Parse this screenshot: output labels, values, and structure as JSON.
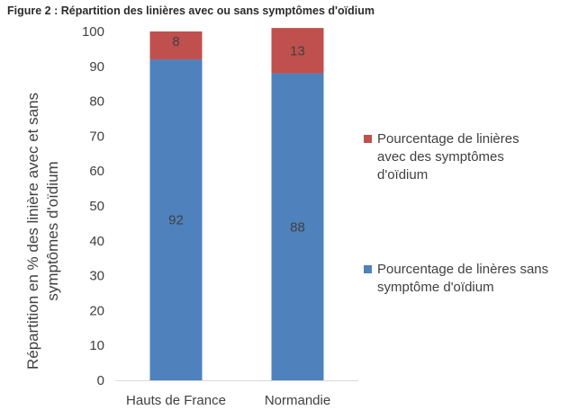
{
  "figure_title": "Figure 2 : Répartition des linières avec ou sans symptômes d'oïdium",
  "chart_data": {
    "type": "bar",
    "stacked": true,
    "title": "",
    "xlabel": "",
    "ylabel_lines": [
      "Répartition en % des linière avec et sans",
      "symptômes d'oïdium"
    ],
    "categories": [
      "Hauts de France",
      "Normandie"
    ],
    "ylim": [
      0,
      100
    ],
    "yticks": [
      0,
      10,
      20,
      30,
      40,
      50,
      60,
      70,
      80,
      90,
      100
    ],
    "grid": false,
    "legend_position": "right",
    "series": [
      {
        "name": "Pourcentage de linères sans symptôme d'oïdium",
        "legend_lines": [
          "Pourcentage de linères sans",
          "symptôme d'oïdium"
        ],
        "values": [
          92,
          88
        ],
        "color": "#4F81BD"
      },
      {
        "name": "Pourcentage de linières avec des symptômes d'oïdium",
        "legend_lines": [
          "Pourcentage de linières",
          "avec des symptômes",
          "d'oïdium"
        ],
        "values": [
          8,
          13
        ],
        "color": "#C0504D"
      }
    ]
  }
}
